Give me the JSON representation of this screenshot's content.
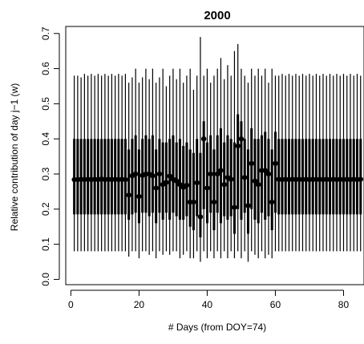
{
  "chart_data": {
    "type": "scatter",
    "title": "2000",
    "xlabel": "# Days (from DOY=74)",
    "ylabel": "Relative contribution of day j−1 (w)",
    "xlim": [
      -1.5,
      86
    ],
    "ylim": [
      -0.015,
      0.72
    ],
    "xticks": [
      0,
      20,
      40,
      60,
      80
    ],
    "yticks": [
      0.0,
      0.1,
      0.2,
      0.3,
      0.4,
      0.5,
      0.6,
      0.7
    ],
    "grid": false,
    "point_style": "filled-circle",
    "range_style": "nested vertical bars (thin outer interval, thick inner interval)",
    "series": [
      {
        "x": [
          1,
          2,
          3,
          4,
          5,
          6,
          7,
          8,
          9,
          10,
          11,
          12,
          13,
          14,
          15,
          16,
          17,
          18,
          19,
          20,
          21,
          22,
          23,
          24,
          25,
          26,
          27,
          28,
          29,
          30,
          31,
          32,
          33,
          34,
          35,
          36,
          37,
          38,
          39,
          40,
          41,
          42,
          43,
          44,
          45,
          46,
          47,
          48,
          49,
          50,
          51,
          52,
          53,
          54,
          55,
          56,
          57,
          58,
          59,
          60,
          61,
          62,
          63,
          64,
          65,
          66,
          67,
          68,
          69,
          70,
          71,
          72,
          73,
          74,
          75,
          76,
          77,
          78,
          79,
          80,
          81,
          82,
          83,
          84,
          85
        ],
        "y": [
          0.284,
          0.284,
          0.285,
          0.284,
          0.285,
          0.284,
          0.285,
          0.284,
          0.286,
          0.284,
          0.285,
          0.284,
          0.285,
          0.284,
          0.285,
          0.284,
          0.24,
          0.295,
          0.3,
          0.236,
          0.296,
          0.3,
          0.3,
          0.295,
          0.26,
          0.3,
          0.27,
          0.276,
          0.294,
          0.285,
          0.28,
          0.27,
          0.262,
          0.268,
          0.22,
          0.22,
          0.275,
          0.178,
          0.4,
          0.26,
          0.3,
          0.22,
          0.3,
          0.31,
          0.27,
          0.29,
          0.285,
          0.205,
          0.38,
          0.4,
          0.29,
          0.21,
          0.33,
          0.28,
          0.27,
          0.31,
          0.31,
          0.3,
          0.22,
          0.33,
          0.285,
          0.284,
          0.285,
          0.284,
          0.285,
          0.284,
          0.285,
          0.284,
          0.285,
          0.284,
          0.285,
          0.284,
          0.285,
          0.284,
          0.285,
          0.284,
          0.285,
          0.284,
          0.285,
          0.284,
          0.285,
          0.284,
          0.285,
          0.284,
          0.285
        ],
        "lower": [
          0.08,
          0.08,
          0.08,
          0.08,
          0.08,
          0.08,
          0.08,
          0.08,
          0.08,
          0.08,
          0.08,
          0.08,
          0.08,
          0.08,
          0.08,
          0.08,
          0.065,
          0.08,
          0.08,
          0.06,
          0.08,
          0.08,
          0.07,
          0.08,
          0.06,
          0.08,
          0.07,
          0.08,
          0.07,
          0.08,
          0.08,
          0.06,
          0.07,
          0.08,
          0.06,
          0.06,
          0.08,
          0.05,
          0.08,
          0.06,
          0.08,
          0.06,
          0.08,
          0.06,
          0.08,
          0.06,
          0.08,
          0.06,
          0.08,
          0.06,
          0.08,
          0.05,
          0.08,
          0.07,
          0.06,
          0.08,
          0.06,
          0.07,
          0.06,
          0.08,
          0.08,
          0.08,
          0.08,
          0.08,
          0.08,
          0.08,
          0.08,
          0.08,
          0.08,
          0.08,
          0.08,
          0.08,
          0.08,
          0.08,
          0.08,
          0.08,
          0.08,
          0.08,
          0.08,
          0.08,
          0.08,
          0.08,
          0.08,
          0.08,
          0.08
        ],
        "upper": [
          0.58,
          0.58,
          0.575,
          0.585,
          0.58,
          0.585,
          0.58,
          0.585,
          0.58,
          0.585,
          0.58,
          0.585,
          0.58,
          0.585,
          0.58,
          0.585,
          0.56,
          0.575,
          0.6,
          0.56,
          0.575,
          0.6,
          0.57,
          0.6,
          0.56,
          0.575,
          0.6,
          0.55,
          0.58,
          0.6,
          0.57,
          0.6,
          0.56,
          0.58,
          0.6,
          0.54,
          0.58,
          0.69,
          0.58,
          0.6,
          0.56,
          0.58,
          0.6,
          0.63,
          0.57,
          0.61,
          0.58,
          0.65,
          0.67,
          0.6,
          0.58,
          0.56,
          0.6,
          0.58,
          0.6,
          0.58,
          0.6,
          0.56,
          0.6,
          0.58,
          0.58,
          0.585,
          0.58,
          0.585,
          0.58,
          0.585,
          0.58,
          0.585,
          0.58,
          0.585,
          0.58,
          0.585,
          0.58,
          0.585,
          0.58,
          0.585,
          0.58,
          0.585,
          0.58,
          0.585,
          0.58,
          0.585,
          0.58,
          0.585,
          0.58
        ],
        "inner_lower": [
          0.185,
          0.185,
          0.185,
          0.185,
          0.185,
          0.185,
          0.185,
          0.185,
          0.185,
          0.185,
          0.185,
          0.185,
          0.185,
          0.185,
          0.185,
          0.185,
          0.17,
          0.185,
          0.19,
          0.16,
          0.19,
          0.19,
          0.18,
          0.19,
          0.16,
          0.19,
          0.17,
          0.19,
          0.17,
          0.19,
          0.18,
          0.17,
          0.17,
          0.18,
          0.15,
          0.14,
          0.18,
          0.12,
          0.2,
          0.16,
          0.19,
          0.14,
          0.19,
          0.16,
          0.18,
          0.17,
          0.18,
          0.13,
          0.2,
          0.17,
          0.19,
          0.13,
          0.2,
          0.17,
          0.16,
          0.19,
          0.17,
          0.18,
          0.14,
          0.19,
          0.185,
          0.185,
          0.185,
          0.185,
          0.185,
          0.185,
          0.185,
          0.185,
          0.185,
          0.185,
          0.185,
          0.185,
          0.185,
          0.185,
          0.185,
          0.185,
          0.185,
          0.185,
          0.185,
          0.185,
          0.185,
          0.185,
          0.185,
          0.185,
          0.185
        ],
        "inner_upper": [
          0.4,
          0.4,
          0.4,
          0.4,
          0.4,
          0.4,
          0.4,
          0.4,
          0.4,
          0.4,
          0.4,
          0.4,
          0.4,
          0.4,
          0.4,
          0.4,
          0.37,
          0.4,
          0.41,
          0.37,
          0.4,
          0.41,
          0.4,
          0.41,
          0.37,
          0.4,
          0.39,
          0.39,
          0.4,
          0.41,
          0.39,
          0.4,
          0.38,
          0.39,
          0.37,
          0.36,
          0.4,
          0.36,
          0.45,
          0.39,
          0.41,
          0.37,
          0.41,
          0.43,
          0.39,
          0.41,
          0.4,
          0.39,
          0.47,
          0.45,
          0.4,
          0.37,
          0.43,
          0.4,
          0.4,
          0.41,
          0.42,
          0.4,
          0.37,
          0.42,
          0.4,
          0.4,
          0.4,
          0.4,
          0.4,
          0.4,
          0.4,
          0.4,
          0.4,
          0.4,
          0.4,
          0.4,
          0.4,
          0.4,
          0.4,
          0.4,
          0.4,
          0.4,
          0.4,
          0.4,
          0.4,
          0.4,
          0.4,
          0.4,
          0.4
        ]
      }
    ]
  }
}
